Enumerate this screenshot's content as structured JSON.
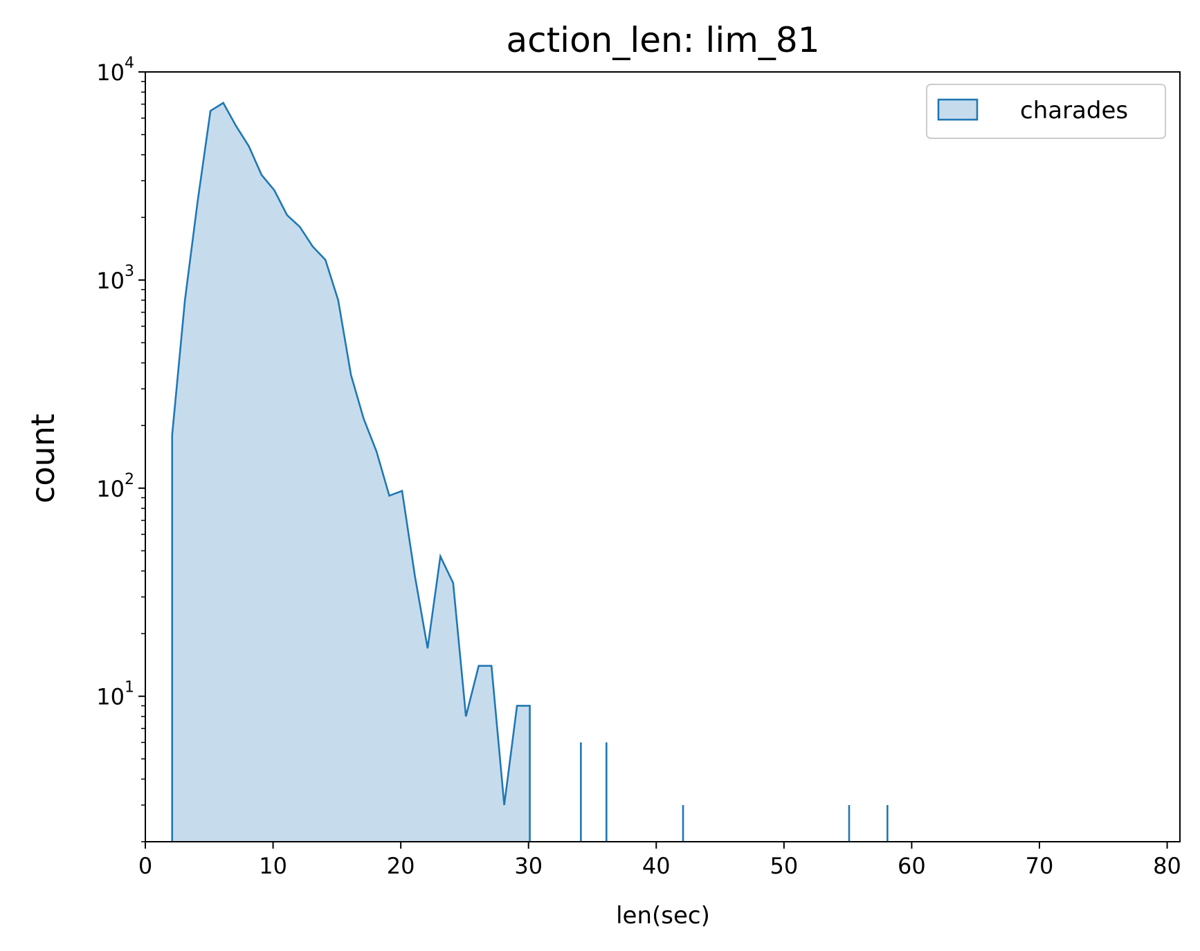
{
  "chart_data": {
    "type": "area",
    "title": "action_len: lim_81",
    "xlabel": "len(sec)",
    "ylabel": "count",
    "xlim": [
      0,
      81
    ],
    "ylim": [
      2,
      10000
    ],
    "yscale": "log",
    "grid": false,
    "legend_position": "top-right",
    "x_ticks": [
      {
        "value": 0,
        "label": "0"
      },
      {
        "value": 10,
        "label": "10"
      },
      {
        "value": 20,
        "label": "20"
      },
      {
        "value": 30,
        "label": "30"
      },
      {
        "value": 40,
        "label": "40"
      },
      {
        "value": 50,
        "label": "50"
      },
      {
        "value": 60,
        "label": "60"
      },
      {
        "value": 70,
        "label": "70"
      },
      {
        "value": 80,
        "label": "80"
      }
    ],
    "y_ticks": [
      {
        "value": 10,
        "base": "10",
        "exp": "1"
      },
      {
        "value": 100,
        "base": "10",
        "exp": "2"
      },
      {
        "value": 1000,
        "base": "10",
        "exp": "3"
      },
      {
        "value": 10000,
        "base": "10",
        "exp": "4"
      }
    ],
    "series": [
      {
        "name": "charades",
        "color": "#1f77b4",
        "fill": "#c6dced",
        "segments": [
          {
            "x": [
              2.1,
              3.1,
              4.1,
              5.1,
              6.1,
              7.1,
              8.1,
              9.1,
              10.1,
              11.1,
              12.1,
              13.1,
              14.1,
              15.1,
              16.1,
              17.1,
              18.1,
              19.1,
              20.1,
              21.1,
              22.1,
              23.1,
              24.1,
              25.1,
              26.1,
              27.1,
              28.1,
              29.1,
              30.1
            ],
            "y": [
              180,
              800,
              2400,
              6500,
              7100,
              5500,
              4400,
              3200,
              2700,
              2050,
              1800,
              1450,
              1250,
              800,
              350,
              215,
              150,
              92,
              97,
              38,
              17,
              47,
              35,
              8,
              14,
              14,
              3,
              9,
              9
            ]
          }
        ],
        "spikes": [
          {
            "x": 34.1,
            "y": 6
          },
          {
            "x": 36.1,
            "y": 6
          },
          {
            "x": 42.1,
            "y": 3
          },
          {
            "x": 55.1,
            "y": 3
          },
          {
            "x": 58.1,
            "y": 3
          }
        ]
      }
    ]
  }
}
